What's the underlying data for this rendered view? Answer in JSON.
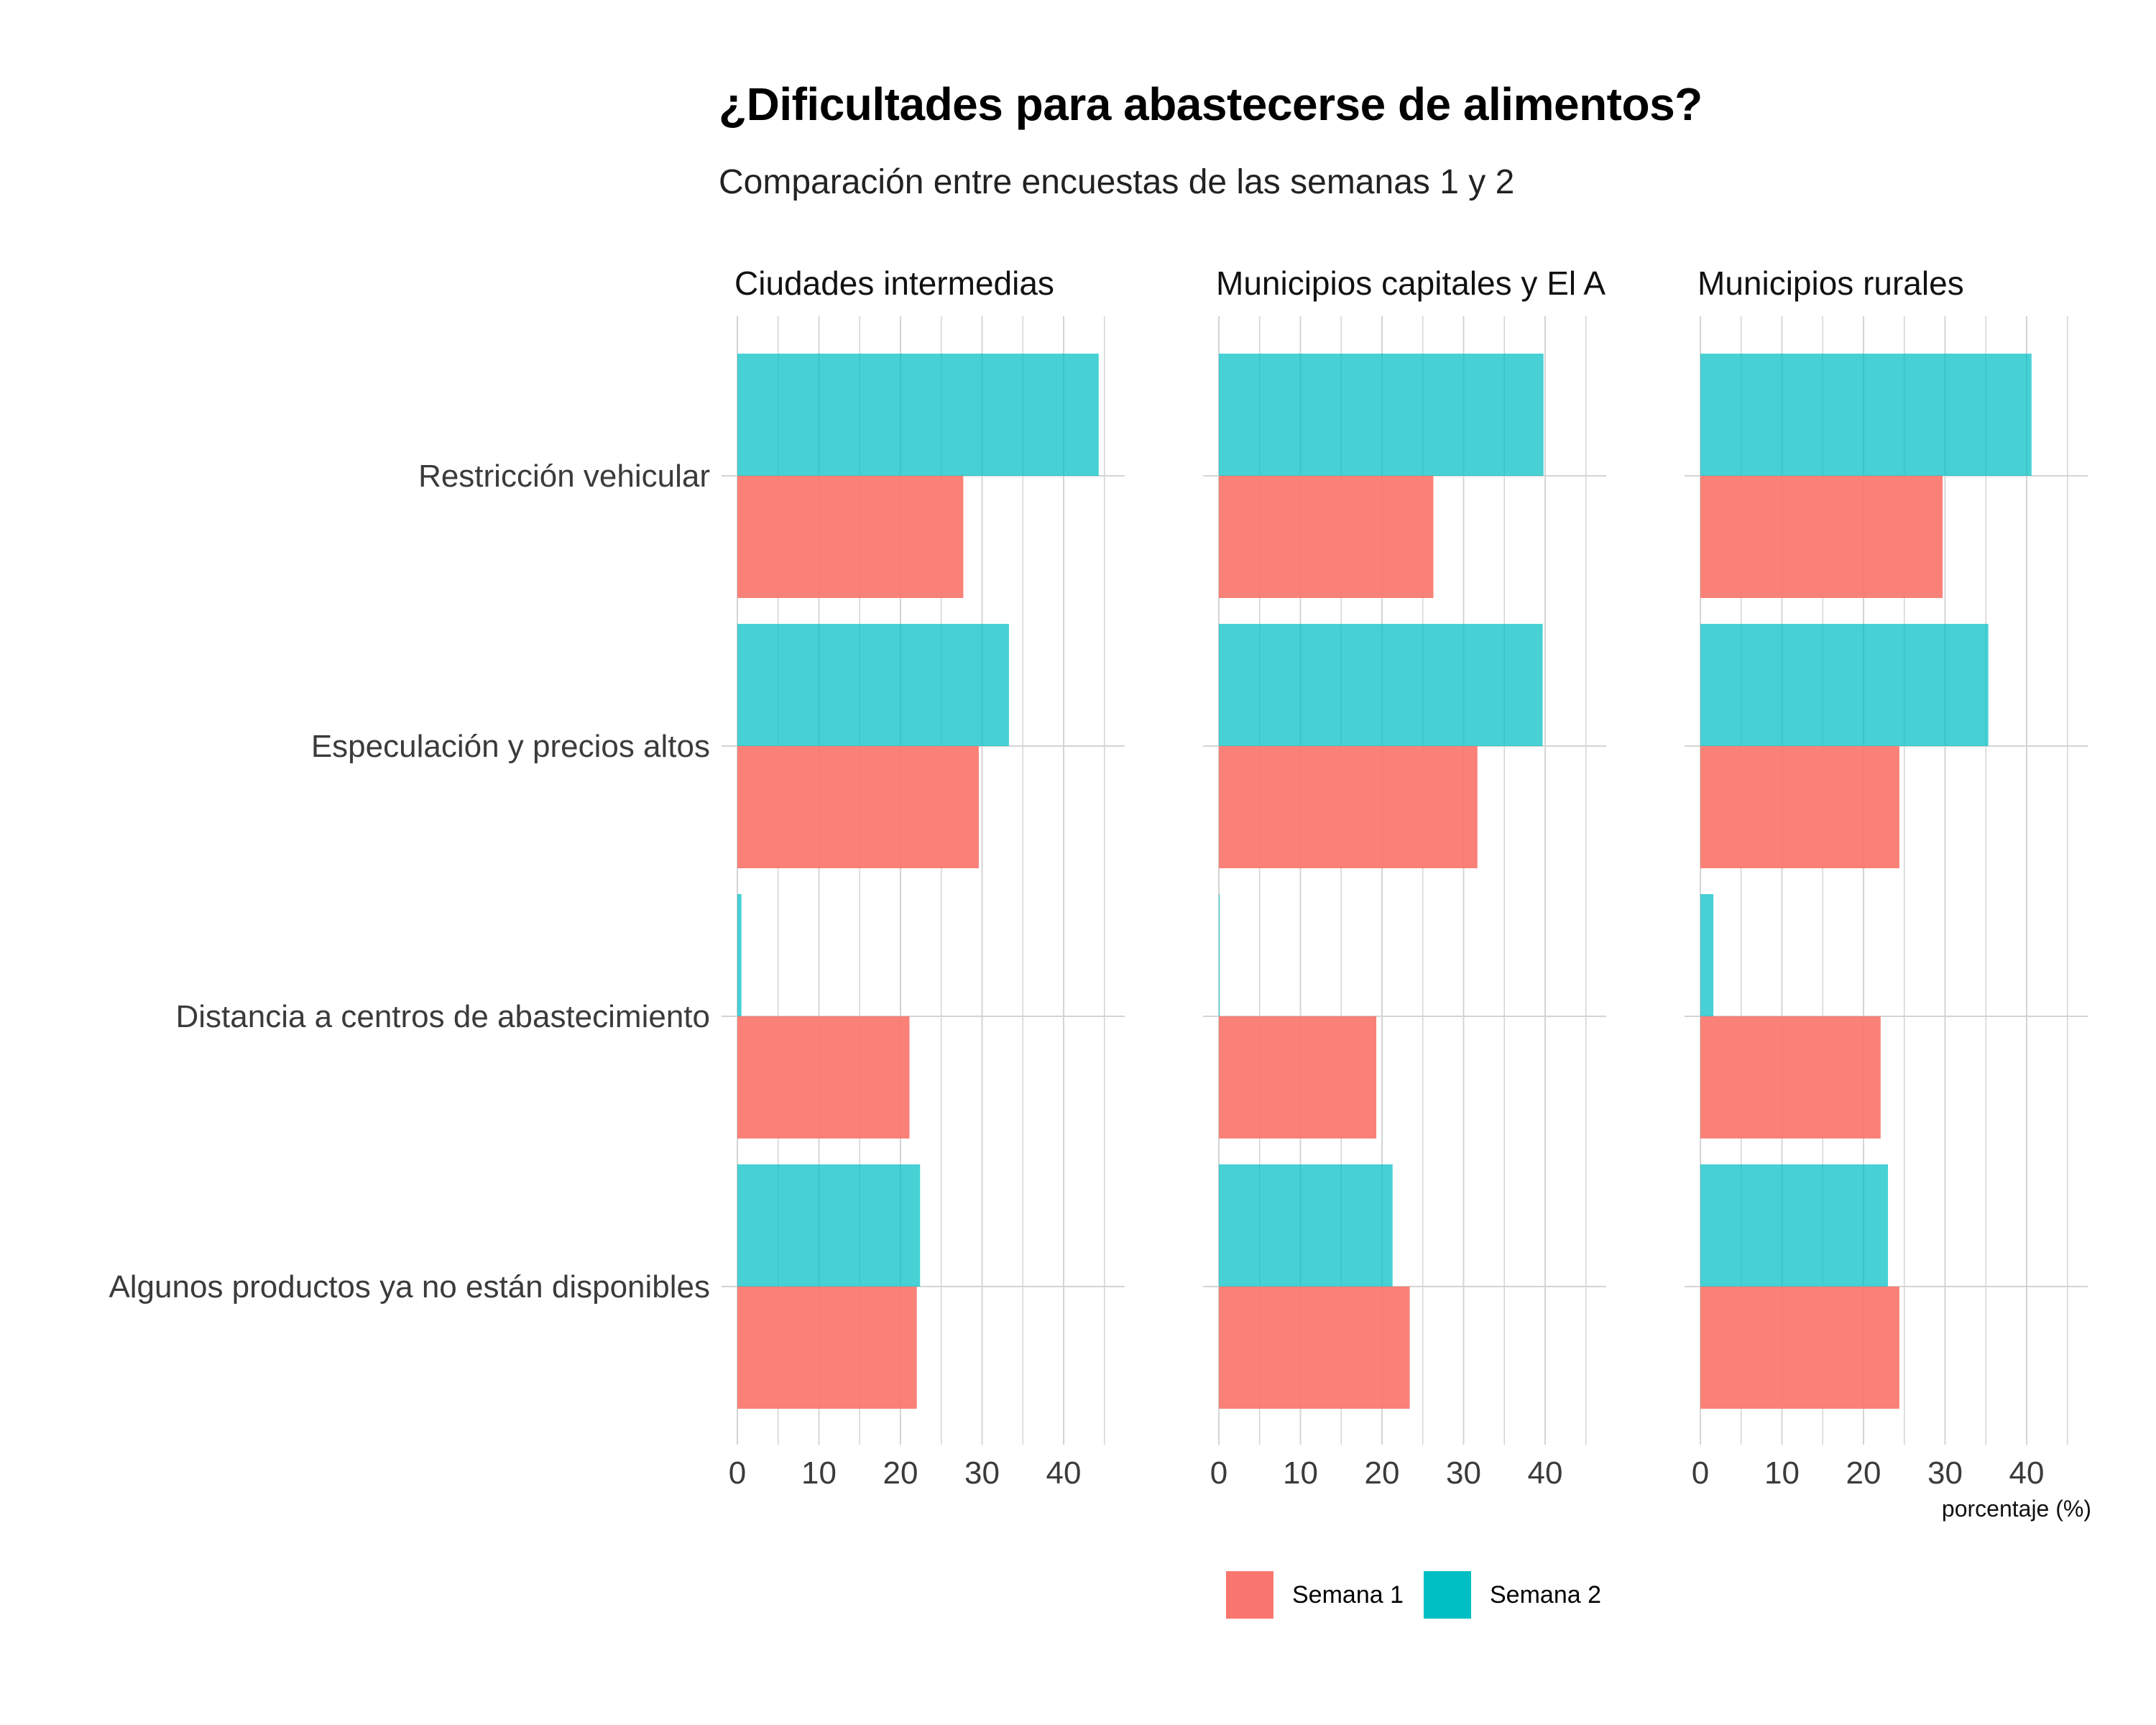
{
  "header": {
    "title": "¿Dificultades para abastecerse de alimentos?",
    "subtitle": "Comparación entre encuestas de las semanas 1 y 2"
  },
  "colors": {
    "semana1": "#F8766D",
    "semana2": "#00BFC4",
    "grid": "#d4d4d4",
    "text": "#3b3b3b"
  },
  "chart_data": {
    "type": "bar",
    "orientation": "horizontal",
    "title": "¿Dificultades para abastecerse de alimentos?",
    "subtitle": "Comparación entre encuestas de las semanas 1 y 2",
    "xlabel": "porcentaje (%)",
    "ylabel": "",
    "xlim": [
      0,
      45
    ],
    "x_ticks": [
      "0",
      "10",
      "20",
      "30",
      "40"
    ],
    "grid": true,
    "legend_position": "bottom",
    "categories": [
      "Restricción vehicular",
      "Especulación y precios altos",
      "Distancia a centros de abastecimiento",
      "Algunos productos ya no están disponibles"
    ],
    "legend": [
      "Semana 1",
      "Semana 2"
    ],
    "panels": [
      {
        "name": "Ciudades intermedias",
        "series": [
          {
            "name": "Semana 1",
            "values": [
              27.7,
              29.6,
              21.1,
              22.0
            ]
          },
          {
            "name": "Semana 2",
            "values": [
              44.3,
              33.3,
              0.5,
              22.4
            ]
          }
        ]
      },
      {
        "name": "Municipios capitales y El A",
        "series": [
          {
            "name": "Semana 1",
            "values": [
              26.3,
              31.7,
              19.3,
              23.4
            ]
          },
          {
            "name": "Semana 2",
            "values": [
              39.8,
              39.7,
              0.1,
              21.3
            ]
          }
        ]
      },
      {
        "name": "Municipios rurales",
        "series": [
          {
            "name": "Semana 1",
            "values": [
              29.7,
              24.4,
              22.1,
              24.4
            ]
          },
          {
            "name": "Semana 2",
            "values": [
              40.6,
              35.3,
              1.6,
              23.0
            ]
          }
        ]
      }
    ]
  }
}
